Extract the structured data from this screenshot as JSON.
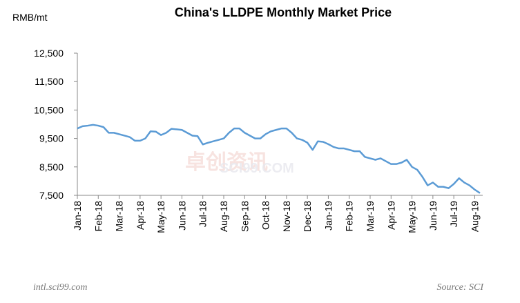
{
  "chart_data": {
    "type": "line",
    "title": "China's LLDPE Monthly Market Price",
    "y_label": "RMB/mt",
    "source": "Source: SCI",
    "website": "intl.sci99.com",
    "watermark": [
      "卓创资讯",
      "SCI99.COM"
    ],
    "ylim": [
      7500,
      12500
    ],
    "yticks": [
      {
        "value": 7500,
        "label": "7,500"
      },
      {
        "value": 8500,
        "label": "8,500"
      },
      {
        "value": 9500,
        "label": "9,500"
      },
      {
        "value": 10500,
        "label": "10,500"
      },
      {
        "value": 11500,
        "label": "11,500"
      },
      {
        "value": 12500,
        "label": "12,500"
      }
    ],
    "categories": [
      "Jan-18",
      null,
      null,
      null,
      "Feb-18",
      null,
      null,
      null,
      "Mar-18",
      null,
      null,
      null,
      "Apr-18",
      null,
      null,
      null,
      "May-18",
      null,
      null,
      null,
      "Jun-18",
      null,
      null,
      null,
      "Jul-18",
      null,
      null,
      null,
      "Aug-18",
      null,
      null,
      null,
      "Sep-18",
      null,
      null,
      null,
      "Oct-18",
      null,
      null,
      null,
      "Nov-18",
      null,
      null,
      null,
      "Dec-18",
      null,
      null,
      null,
      "Jan-19",
      null,
      null,
      null,
      "Feb-19",
      null,
      null,
      null,
      "Mar-19",
      null,
      null,
      null,
      "Apr-19",
      null,
      null,
      null,
      "May-19",
      null,
      null,
      null,
      "Jun-19",
      null,
      null,
      null,
      "Jul-19",
      null,
      null,
      null,
      "Aug-19",
      null
    ],
    "series": [
      {
        "name": "LLDPE",
        "color": "#5b9bd5",
        "values": [
          9850,
          9930,
          9950,
          9980,
          9950,
          9900,
          9700,
          9700,
          9650,
          9600,
          9550,
          9420,
          9420,
          9500,
          9750,
          9740,
          9620,
          9700,
          9840,
          9820,
          9800,
          9700,
          9600,
          9580,
          9290,
          9350,
          9400,
          9450,
          9500,
          9700,
          9850,
          9850,
          9700,
          9600,
          9500,
          9500,
          9650,
          9750,
          9800,
          9850,
          9850,
          9700,
          9500,
          9450,
          9350,
          9100,
          9400,
          9380,
          9300,
          9200,
          9150,
          9150,
          9100,
          9050,
          9050,
          8850,
          8800,
          8750,
          8800,
          8700,
          8600,
          8600,
          8650,
          8750,
          8500,
          8400,
          8150,
          7850,
          7950,
          7800,
          7800,
          7750,
          7900,
          8100,
          7950,
          7850,
          7700,
          7580
        ]
      }
    ]
  }
}
